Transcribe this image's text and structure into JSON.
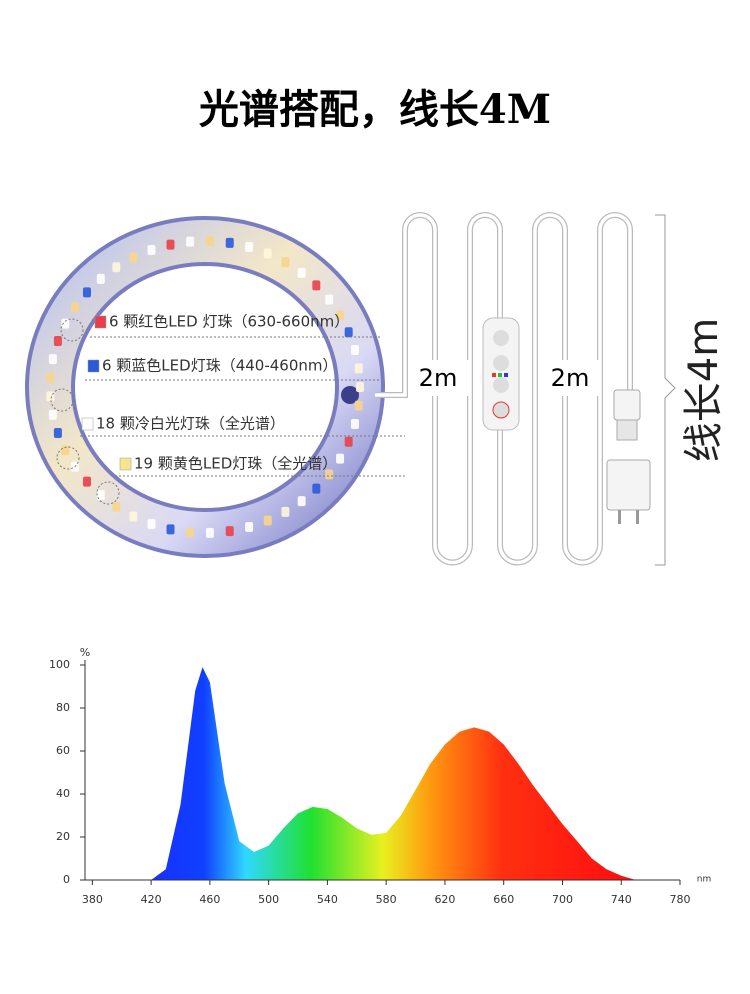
{
  "title": "光谱搭配，线长4M",
  "leds": [
    {
      "label": "6 颗红色LED 灯珠（630-660nm）",
      "color": "#e8404a"
    },
    {
      "label": "6 颗蓝色LED灯珠（440-460nm）",
      "color": "#2a5ad8"
    },
    {
      "label": "18 颗冷白光灯珠（全光谱）",
      "color": "#ffffff"
    },
    {
      "label": "19 颗黄色LED灯珠（全光谱）",
      "color": "#f6e58a"
    }
  ],
  "cable": {
    "segment_labels": [
      "2m",
      "2m"
    ],
    "total_label": "线长4m"
  },
  "chart_data": {
    "type": "area",
    "y_unit": "%",
    "x_unit": "nm",
    "x": [
      420,
      430,
      440,
      450,
      455,
      460,
      470,
      480,
      490,
      500,
      510,
      520,
      530,
      540,
      550,
      560,
      570,
      580,
      590,
      600,
      610,
      620,
      630,
      640,
      650,
      660,
      670,
      680,
      690,
      700,
      710,
      720,
      730,
      740,
      750
    ],
    "values": [
      0,
      5,
      35,
      88,
      99,
      92,
      45,
      18,
      13,
      16,
      24,
      31,
      34,
      33,
      29,
      24,
      21,
      22,
      30,
      42,
      54,
      63,
      69,
      71,
      69,
      63,
      54,
      44,
      35,
      26,
      18,
      10,
      5,
      2,
      0
    ],
    "xlim": [
      375,
      780
    ],
    "xticks": [
      380,
      420,
      460,
      500,
      540,
      580,
      620,
      660,
      700,
      740,
      780
    ],
    "ylim": [
      0,
      100
    ],
    "yticks": [
      0,
      20,
      40,
      60,
      80,
      100
    ]
  }
}
